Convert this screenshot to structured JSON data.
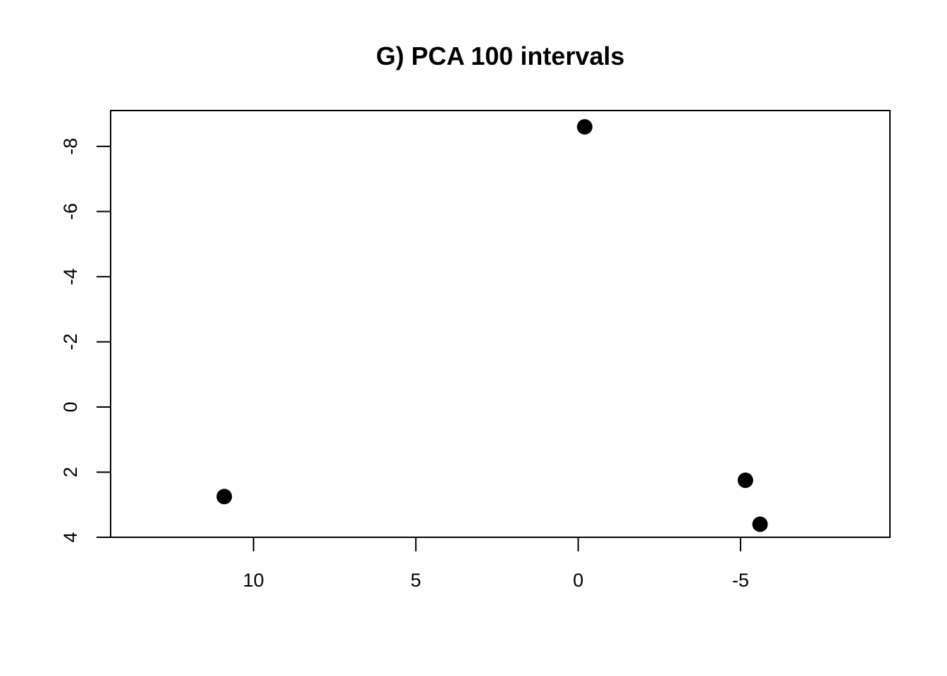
{
  "chart_data": {
    "type": "scatter",
    "title": "G) PCA 100 intervals",
    "xlabel": "",
    "ylabel": "",
    "x_reversed": true,
    "y_reversed": true,
    "xlim": [
      14.4,
      -9.6
    ],
    "ylim": [
      4.0,
      -9.1
    ],
    "x_ticks": [
      10,
      5,
      0,
      -5
    ],
    "x_tick_labels": [
      "10",
      "5",
      "0",
      "-5"
    ],
    "y_ticks": [
      4,
      2,
      0,
      -2,
      -4,
      -6,
      -8
    ],
    "y_tick_labels": [
      "4",
      "2",
      "0",
      "-2",
      "-4",
      "-6",
      "-8"
    ],
    "grid": false,
    "point_color": "#000000",
    "series": [
      {
        "points": [
          {
            "x": -0.2,
            "y": -8.6
          },
          {
            "x": 10.9,
            "y": 2.75
          },
          {
            "x": -5.15,
            "y": 2.25
          },
          {
            "x": -5.6,
            "y": 3.6
          }
        ]
      }
    ]
  }
}
